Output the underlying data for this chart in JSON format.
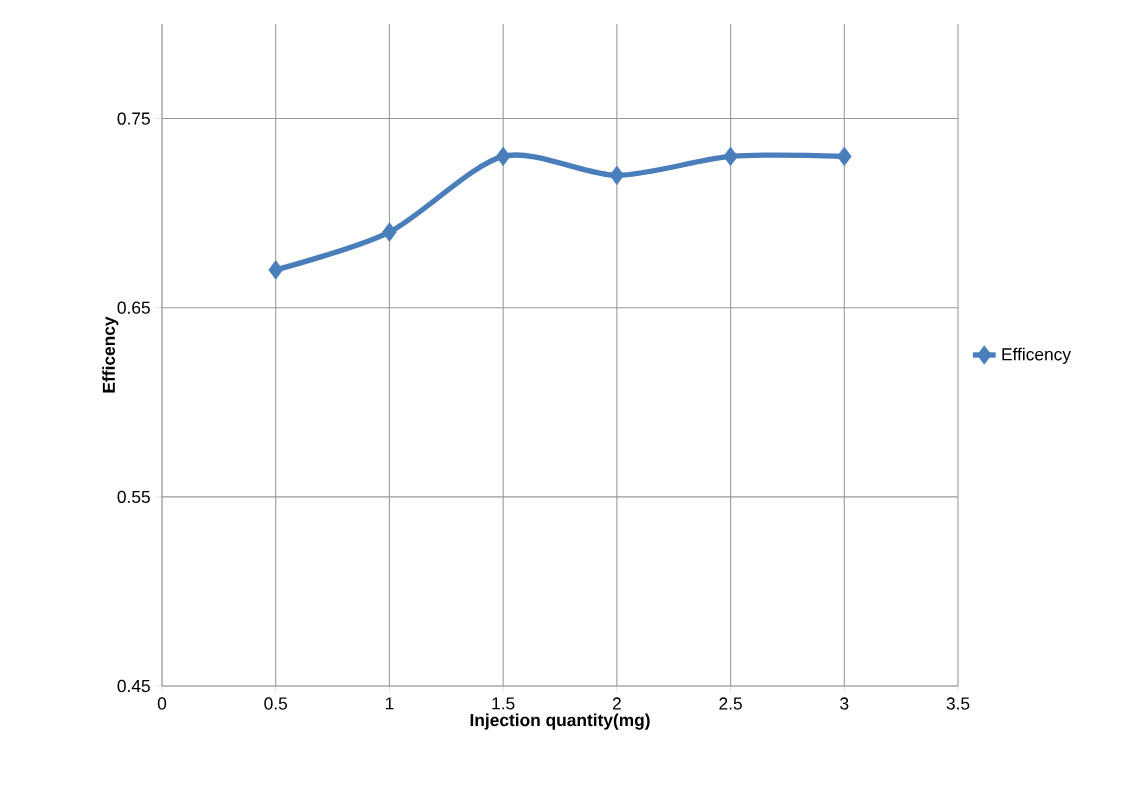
{
  "chart_data": {
    "type": "line",
    "xlabel": "Injection quantity(mg)",
    "ylabel": "Efficency",
    "x": [
      0.5,
      1,
      1.5,
      2,
      2.5,
      3
    ],
    "series": [
      {
        "name": "Efficency",
        "color": "#4a7ebb",
        "values": [
          0.67,
          0.69,
          0.73,
          0.72,
          0.73,
          0.73
        ]
      }
    ],
    "xlim": [
      0,
      3.5
    ],
    "xticks": [
      0,
      0.5,
      1,
      1.5,
      2,
      2.5,
      3,
      3.5
    ],
    "ylim": [
      0.45,
      0.8
    ],
    "yticks": [
      0.45,
      0.55,
      0.65,
      0.75
    ],
    "grid": true,
    "legend": "right",
    "marker": "diamond",
    "line_style": "solid"
  }
}
